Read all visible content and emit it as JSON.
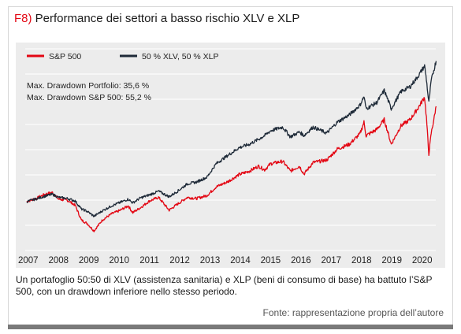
{
  "header": {
    "fig_label": "F8)",
    "title": "Performance dei settori a basso rischio XLV e XLP"
  },
  "caption": "Un portafoglio 50:50 di XLV (assistenza sanitaria) e XLP (beni di consumo di base) ha battuto l’S&P 500, con un drawdown inferiore nello stesso periodo.",
  "source": "Fonte: rappresentazione propria dell’autore",
  "chart_data": {
    "type": "line",
    "title": "",
    "xlabel": "",
    "ylabel": "",
    "x_ticks": [
      "2007",
      "2008",
      "2009",
      "2010",
      "2011",
      "2012",
      "2013",
      "2014",
      "2015",
      "2016",
      "2017",
      "2018",
      "2019",
      "2020"
    ],
    "xlim": [
      2006.9,
      2020.45
    ],
    "ylim": [
      0.2,
      3.5
    ],
    "grid": true,
    "legend": "top-left",
    "annotations": [
      "Max. Drawdown Portfolio: 35,6 %",
      "Max. Drawdown S&P 500: 55,2 %"
    ],
    "series": [
      {
        "name": "S&P 500",
        "color": "#e30613",
        "points": [
          [
            2006.95,
            1.0
          ],
          [
            2007.3,
            1.06
          ],
          [
            2007.55,
            1.12
          ],
          [
            2007.8,
            1.15
          ],
          [
            2008.0,
            1.04
          ],
          [
            2008.3,
            1.02
          ],
          [
            2008.55,
            0.94
          ],
          [
            2008.75,
            0.7
          ],
          [
            2008.95,
            0.64
          ],
          [
            2009.17,
            0.52
          ],
          [
            2009.45,
            0.7
          ],
          [
            2009.75,
            0.8
          ],
          [
            2010.0,
            0.85
          ],
          [
            2010.3,
            0.93
          ],
          [
            2010.45,
            0.82
          ],
          [
            2010.7,
            0.9
          ],
          [
            2011.0,
            1.01
          ],
          [
            2011.3,
            1.07
          ],
          [
            2011.65,
            0.86
          ],
          [
            2011.9,
            0.95
          ],
          [
            2012.25,
            1.07
          ],
          [
            2012.55,
            1.05
          ],
          [
            2012.9,
            1.1
          ],
          [
            2013.2,
            1.24
          ],
          [
            2013.6,
            1.33
          ],
          [
            2013.95,
            1.44
          ],
          [
            2014.3,
            1.5
          ],
          [
            2014.6,
            1.58
          ],
          [
            2014.8,
            1.52
          ],
          [
            2015.0,
            1.62
          ],
          [
            2015.4,
            1.66
          ],
          [
            2015.65,
            1.5
          ],
          [
            2015.95,
            1.58
          ],
          [
            2016.1,
            1.45
          ],
          [
            2016.4,
            1.64
          ],
          [
            2016.85,
            1.68
          ],
          [
            2017.2,
            1.86
          ],
          [
            2017.6,
            1.94
          ],
          [
            2017.95,
            2.11
          ],
          [
            2018.08,
            2.3
          ],
          [
            2018.15,
            2.08
          ],
          [
            2018.5,
            2.18
          ],
          [
            2018.75,
            2.34
          ],
          [
            2018.98,
            1.94
          ],
          [
            2019.3,
            2.24
          ],
          [
            2019.6,
            2.34
          ],
          [
            2019.85,
            2.52
          ],
          [
            2020.08,
            2.71
          ],
          [
            2020.14,
            2.38
          ],
          [
            2020.22,
            1.78
          ],
          [
            2020.3,
            2.12
          ],
          [
            2020.4,
            2.38
          ],
          [
            2020.46,
            2.56
          ]
        ]
      },
      {
        "name": "50 % XLV, 50 % XLP",
        "color": "#1e2a38",
        "points": [
          [
            2006.95,
            1.0
          ],
          [
            2007.3,
            1.05
          ],
          [
            2007.55,
            1.09
          ],
          [
            2007.8,
            1.12
          ],
          [
            2008.0,
            1.07
          ],
          [
            2008.3,
            1.05
          ],
          [
            2008.55,
            1.01
          ],
          [
            2008.75,
            0.88
          ],
          [
            2008.95,
            0.84
          ],
          [
            2009.17,
            0.76
          ],
          [
            2009.45,
            0.85
          ],
          [
            2009.75,
            0.93
          ],
          [
            2010.0,
            0.98
          ],
          [
            2010.3,
            1.04
          ],
          [
            2010.45,
            0.98
          ],
          [
            2010.7,
            1.06
          ],
          [
            2011.0,
            1.11
          ],
          [
            2011.3,
            1.17
          ],
          [
            2011.65,
            1.08
          ],
          [
            2011.9,
            1.16
          ],
          [
            2012.25,
            1.29
          ],
          [
            2012.55,
            1.32
          ],
          [
            2012.9,
            1.4
          ],
          [
            2013.2,
            1.62
          ],
          [
            2013.6,
            1.76
          ],
          [
            2013.95,
            1.88
          ],
          [
            2014.3,
            1.94
          ],
          [
            2014.6,
            2.02
          ],
          [
            2014.8,
            2.08
          ],
          [
            2015.0,
            2.16
          ],
          [
            2015.4,
            2.22
          ],
          [
            2015.65,
            2.06
          ],
          [
            2015.95,
            2.14
          ],
          [
            2016.1,
            2.08
          ],
          [
            2016.4,
            2.22
          ],
          [
            2016.85,
            2.12
          ],
          [
            2017.2,
            2.3
          ],
          [
            2017.6,
            2.42
          ],
          [
            2017.95,
            2.58
          ],
          [
            2018.08,
            2.72
          ],
          [
            2018.15,
            2.52
          ],
          [
            2018.5,
            2.62
          ],
          [
            2018.75,
            2.82
          ],
          [
            2018.98,
            2.52
          ],
          [
            2019.3,
            2.8
          ],
          [
            2019.6,
            2.88
          ],
          [
            2019.85,
            3.04
          ],
          [
            2020.08,
            3.22
          ],
          [
            2020.14,
            3.0
          ],
          [
            2020.22,
            2.62
          ],
          [
            2020.3,
            2.98
          ],
          [
            2020.4,
            3.18
          ],
          [
            2020.46,
            3.3
          ]
        ]
      }
    ]
  }
}
